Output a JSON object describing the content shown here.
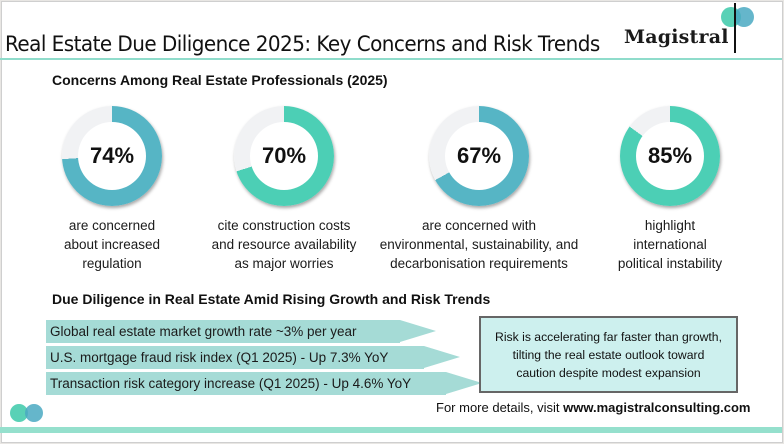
{
  "title": "Real Estate Due Diligence 2025: Key Concerns and Risk Trends",
  "brand": {
    "name": "Magistral"
  },
  "colors": {
    "teal_blue": "#56b5c5",
    "mint": "#4ccfb5",
    "track": "#f1f2f4",
    "arrow": "#a5dbd6",
    "callout_bg": "#cdf0ee",
    "rule": "#8fdccb"
  },
  "section1": {
    "heading": "Concerns Among Real Estate Professionals (2025)",
    "stats": [
      {
        "value": 74,
        "label": "74%",
        "caption_lines": [
          "are concerned",
          "about increased",
          "regulation"
        ],
        "color": "#56b5c5"
      },
      {
        "value": 70,
        "label": "70%",
        "caption_lines": [
          "cite construction costs",
          "and resource availability",
          "as major worries"
        ],
        "color": "#4ccfb5"
      },
      {
        "value": 67,
        "label": "67%",
        "caption_lines": [
          "are concerned with",
          "environmental, sustainability, and",
          "decarbonisation requirements"
        ],
        "color": "#56b5c5"
      },
      {
        "value": 85,
        "label": "85%",
        "caption_lines": [
          "highlight",
          "international",
          "political instability"
        ],
        "color": "#4ccfb5"
      }
    ]
  },
  "section2": {
    "heading": "Due Diligence in Real Estate Amid Rising Growth and Risk Trends",
    "trends": [
      "Global real estate market growth rate ~3% per year",
      "U.S. mortgage fraud risk index (Q1 2025) - Up 7.3% YoY",
      "Transaction risk category increase (Q1 2025) - Up 4.6% YoY"
    ],
    "callout_lines": [
      "Risk is accelerating far faster than growth,",
      "tilting the real estate outlook toward",
      "caution despite modest expansion"
    ]
  },
  "footer": {
    "prefix": "For more details, visit ",
    "url": "www.magistralconsulting.com"
  }
}
